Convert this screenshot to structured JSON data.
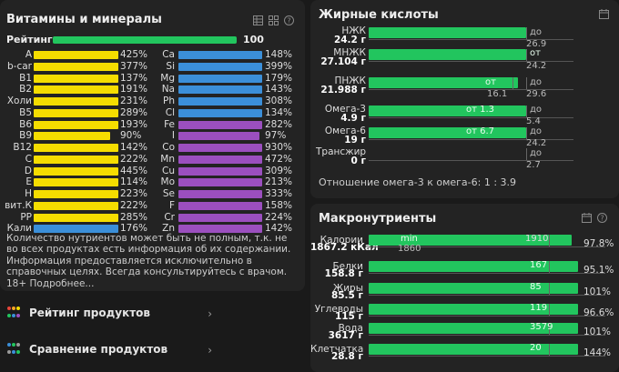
{
  "vitamins": {
    "title": "Витамины и минералы",
    "rating_label": "Рейтинг",
    "rating_value": "100",
    "rating_percent": 100,
    "left": [
      {
        "label": "A",
        "pct": "425%",
        "color": "#f5dd00"
      },
      {
        "label": "b-car",
        "pct": "377%",
        "color": "#f5dd00"
      },
      {
        "label": "B1",
        "pct": "137%",
        "color": "#f5dd00"
      },
      {
        "label": "B2",
        "pct": "191%",
        "color": "#f5dd00"
      },
      {
        "label": "Холи",
        "pct": "231%",
        "color": "#f5dd00"
      },
      {
        "label": "B5",
        "pct": "289%",
        "color": "#f5dd00"
      },
      {
        "label": "B6",
        "pct": "193%",
        "color": "#f5dd00"
      },
      {
        "label": "B9",
        "pct": "90%",
        "color": "#f5dd00",
        "fill": 0.9
      },
      {
        "label": "B12",
        "pct": "142%",
        "color": "#f5dd00"
      },
      {
        "label": "C",
        "pct": "222%",
        "color": "#f5dd00"
      },
      {
        "label": "D",
        "pct": "445%",
        "color": "#f5dd00"
      },
      {
        "label": "E",
        "pct": "114%",
        "color": "#f5dd00"
      },
      {
        "label": "H",
        "pct": "223%",
        "color": "#f5dd00"
      },
      {
        "label": "вит.К",
        "pct": "222%",
        "color": "#f5dd00"
      },
      {
        "label": "PP",
        "pct": "285%",
        "color": "#f5dd00"
      },
      {
        "label": "Кали",
        "pct": "176%",
        "color": "#3b8fd9"
      }
    ],
    "right": [
      {
        "label": "Ca",
        "pct": "148%",
        "color": "#3b8fd9"
      },
      {
        "label": "Si",
        "pct": "399%",
        "color": "#3b8fd9"
      },
      {
        "label": "Mg",
        "pct": "179%",
        "color": "#3b8fd9"
      },
      {
        "label": "Na",
        "pct": "143%",
        "color": "#3b8fd9"
      },
      {
        "label": "Ph",
        "pct": "308%",
        "color": "#3b8fd9"
      },
      {
        "label": "Cl",
        "pct": "134%",
        "color": "#3b8fd9"
      },
      {
        "label": "Fe",
        "pct": "282%",
        "color": "#9b4fbf"
      },
      {
        "label": "I",
        "pct": "97%",
        "color": "#9b4fbf",
        "fill": 0.97
      },
      {
        "label": "Co",
        "pct": "930%",
        "color": "#9b4fbf"
      },
      {
        "label": "Mn",
        "pct": "472%",
        "color": "#9b4fbf"
      },
      {
        "label": "Cu",
        "pct": "309%",
        "color": "#9b4fbf"
      },
      {
        "label": "Mo",
        "pct": "213%",
        "color": "#9b4fbf"
      },
      {
        "label": "Se",
        "pct": "333%",
        "color": "#9b4fbf"
      },
      {
        "label": "F",
        "pct": "158%",
        "color": "#9b4fbf"
      },
      {
        "label": "Cr",
        "pct": "224%",
        "color": "#9b4fbf"
      },
      {
        "label": "Zn",
        "pct": "142%",
        "color": "#9b4fbf"
      }
    ],
    "note": "Количество нутриентов может быть не полным, т.к. не во всех продуктах есть информация об их содержании. Информация предоставляется исключительно в справочных целях. Всегда консультируйтесь с врачом. 18+ Подробнее..."
  },
  "nav": {
    "rating": "Рейтинг продуктов",
    "compare": "Сравнение продуктов"
  },
  "fats": {
    "title": "Жирные кислоты",
    "rows": [
      {
        "name": "НЖК",
        "value": "24.2 г",
        "fill": 1.0,
        "mark": "до",
        "mark_value": "26.9"
      },
      {
        "name": "МНЖК",
        "value": "27.104 г",
        "fill": 1.0,
        "mark": "от",
        "mark_value": "24.2"
      },
      {
        "name": "ПНЖК",
        "value": "21.988 г",
        "fill": 0.95,
        "mark": "от",
        "mark2": "до",
        "mark_value": "16.1",
        "mark2_value": "29.6"
      },
      {
        "name": "Омега-3",
        "value": "4.9 г",
        "fill": 1.0,
        "mark": "от 1.3",
        "mark2": "до",
        "mark2_value": "5.4"
      },
      {
        "name": "Омега-6",
        "value": "19 г",
        "fill": 1.0,
        "mark": "от 6.7",
        "mark2": "до",
        "mark2_value": "24.2"
      },
      {
        "name": "Трансжир",
        "value": "0 г",
        "fill": 0,
        "mark2": "до",
        "mark2_value": "2.7"
      }
    ],
    "ratio": "Отношение омега-3 к омега-6: 1 : 3.9"
  },
  "macro": {
    "title": "Макронутриенты",
    "rows": [
      {
        "name": "Калории",
        "value": "1867.2 кКал",
        "fill": 0.97,
        "marker": "1910",
        "pct": "97.8%",
        "min_label": "min",
        "min_value": "1860"
      },
      {
        "name": "Белки",
        "value": "158.8 г",
        "fill": 1.0,
        "marker": "167",
        "pct": "95.1%"
      },
      {
        "name": "Жиры",
        "value": "85.5 г",
        "fill": 1.0,
        "marker": "85",
        "pct": "101%"
      },
      {
        "name": "Углеводы",
        "value": "115 г",
        "fill": 1.0,
        "marker": "119",
        "pct": "96.6%"
      },
      {
        "name": "Вода",
        "value": "3617 г",
        "fill": 1.0,
        "marker": "3579",
        "pct": "101%"
      },
      {
        "name": "Клетчатка",
        "value": "28.8 г",
        "fill": 1.0,
        "marker": "20",
        "pct": "144%"
      }
    ]
  }
}
